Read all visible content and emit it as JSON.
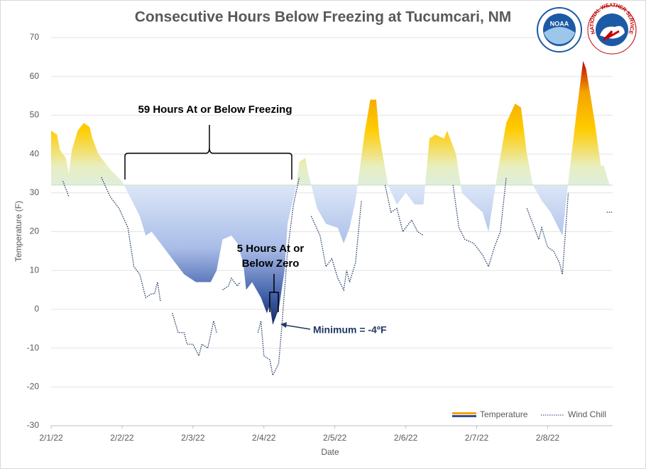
{
  "chart_data": {
    "type": "area-line",
    "title": "Consecutive Hours Below Freezing at Tucumcari, NM",
    "xlabel": "Date",
    "ylabel": "Temperature (F)",
    "xlim": [
      0,
      190
    ],
    "xticks": [
      {
        "value": 0,
        "label": "2/1/22"
      },
      {
        "value": 24,
        "label": "2/2/22"
      },
      {
        "value": 48,
        "label": "2/3/22"
      },
      {
        "value": 72,
        "label": "2/4/22"
      },
      {
        "value": 96,
        "label": "2/5/22"
      },
      {
        "value": 120,
        "label": "2/6/22"
      },
      {
        "value": 144,
        "label": "2/7/22"
      },
      {
        "value": 168,
        "label": "2/8/22"
      }
    ],
    "ylim": [
      -30,
      70
    ],
    "yticks": [
      -30,
      -20,
      -10,
      0,
      10,
      20,
      30,
      40,
      50,
      60,
      70
    ],
    "grid": true,
    "baseline": 32,
    "legend": "bottom-right",
    "series": [
      {
        "name": "Temperature",
        "color": "#f4a300",
        "color2": "#2f4f9a",
        "x": [
          0,
          2,
          3,
          5,
          6,
          7,
          9,
          10,
          11,
          13,
          14,
          16,
          20,
          24,
          26,
          30,
          32,
          34,
          37,
          40,
          45,
          49,
          54,
          56,
          58,
          61,
          63,
          65,
          66,
          68,
          71,
          73,
          74,
          75,
          77,
          79,
          80,
          83,
          84,
          86,
          87,
          90,
          93,
          97,
          99,
          101,
          103,
          106,
          108,
          110,
          111,
          114,
          117,
          120,
          123,
          126,
          128,
          130,
          133,
          134,
          137,
          139,
          143,
          146,
          148,
          151,
          154,
          157,
          159,
          161,
          163,
          166,
          169,
          173,
          175,
          178,
          180,
          181,
          184,
          186,
          187,
          189,
          190
        ],
        "values": [
          46,
          45,
          41,
          39,
          35,
          41,
          46,
          47,
          48,
          47,
          44,
          40,
          36,
          33,
          30,
          24,
          19,
          20,
          17,
          14,
          9,
          7,
          7,
          10,
          18,
          19,
          17,
          12,
          5,
          7,
          3,
          -1,
          1,
          -4,
          0,
          10,
          22,
          32,
          38,
          39,
          35,
          26,
          22,
          21,
          17,
          21,
          28,
          45,
          54,
          54,
          45,
          32,
          27,
          30,
          27,
          27,
          44,
          45,
          44,
          46,
          40,
          30,
          27,
          25,
          20,
          35,
          48,
          53,
          52,
          40,
          32,
          28,
          25,
          19,
          33,
          52,
          64,
          62,
          48,
          37,
          37,
          32,
          32
        ]
      },
      {
        "name": "Wind Chill",
        "color": "#1f3864",
        "x": [
          4,
          6,
          10,
          17,
          20,
          23,
          26,
          28,
          30,
          32,
          34,
          35,
          36,
          37,
          39,
          41,
          43,
          45,
          46,
          48,
          50,
          51,
          53,
          55,
          56,
          57,
          58,
          60,
          61,
          63,
          64,
          67,
          70,
          71,
          72,
          74,
          75,
          77,
          78,
          80,
          82,
          84,
          86,
          88,
          91,
          93,
          95,
          97,
          99,
          100,
          101,
          103,
          105,
          109,
          113,
          115,
          117,
          119,
          121,
          122,
          124,
          126,
          130,
          136,
          138,
          140,
          143,
          146,
          148,
          150,
          152,
          154,
          158,
          161,
          163,
          165,
          166,
          168,
          170,
          172,
          173,
          175,
          180,
          188,
          190
        ],
        "values": [
          33,
          29,
          null,
          34,
          29,
          26,
          21,
          11,
          9,
          3,
          4,
          4,
          7,
          2,
          null,
          -1,
          -6,
          -6,
          -9,
          -9,
          -12,
          -9,
          -10,
          -3,
          -6,
          null,
          5,
          6,
          8,
          6,
          7,
          null,
          -6,
          -3,
          -12,
          -13,
          -17,
          -14,
          -5,
          15,
          27,
          34,
          null,
          24,
          19,
          11,
          13,
          8,
          5,
          10,
          7,
          12,
          28,
          null,
          32,
          25,
          26,
          20,
          22,
          23,
          20,
          19,
          null,
          32,
          21,
          18,
          17,
          14,
          11,
          16,
          20,
          34,
          null,
          26,
          22,
          18,
          21,
          16,
          15,
          12,
          9,
          30,
          null,
          25,
          25
        ]
      }
    ],
    "annotations": {
      "freezing": "59 Hours At or Below Freezing",
      "zero": [
        "5 Hours At or",
        "Below Zero"
      ],
      "minimum": "Minimum = -4ºF"
    },
    "logos": {
      "noaa": "NOAA",
      "nws": "NATIONAL WEATHER SERVICE"
    }
  }
}
